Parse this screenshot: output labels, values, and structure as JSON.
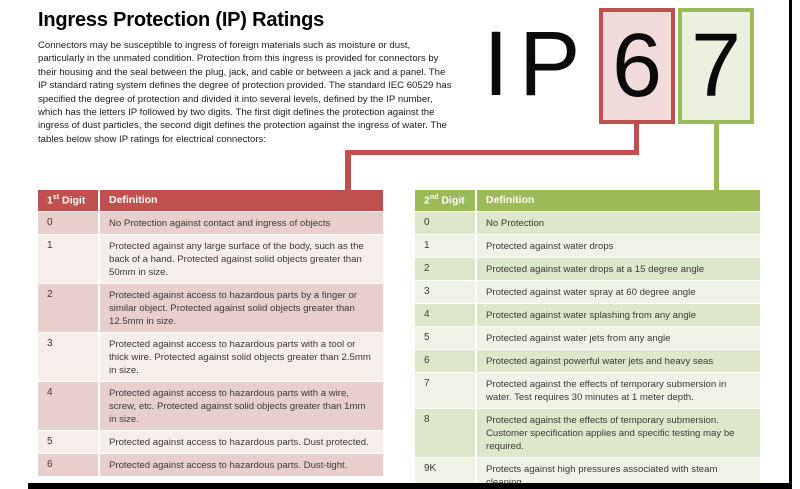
{
  "page": {
    "title": "Ingress Protection (IP) Ratings",
    "intro": "Connectors may be susceptible to ingress of foreign materials such as moisture or dust, particularly in the unmated condition.  Protection from this ingress is provided for connectors by their housing and the seal between the plug, jack, and cable or between a jack and a panel. The IP standard rating system defines the degree of protection provided. The standard IEC 60529 has specified the degree of protection and divided it into several levels, defined by the IP number, which has the letters IP followed by two digits.  The first digit defines the protection against the ingress of dust particles, the second digit defines the protection against the ingress of water. The tables below show IP ratings for electrical connectors:"
  },
  "ip_graphic": {
    "letter_i": "I",
    "letter_p": "P",
    "first_digit": "6",
    "second_digit": "7"
  },
  "colors": {
    "red_accent": "#c0504d",
    "red_box_fill": "#f2dcdb",
    "red_band_dark": "#e8cfcb",
    "red_band_light": "#f5eeea",
    "green_accent": "#9bbb59",
    "green_box_fill": "#ebf1de",
    "green_band_dark": "#dde7ca",
    "green_band_light": "#eff3e6"
  },
  "first_digit_table": {
    "header": {
      "num": "1",
      "sup": "st",
      "word": " Digit",
      "definition": "Definition"
    },
    "rows": [
      {
        "digit": "0",
        "definition": "No Protection against contact and ingress of objects"
      },
      {
        "digit": "1",
        "definition": "Protected against any large surface of the body, such as the back of a hand.  Protected against solid objects greater than 50mm in size."
      },
      {
        "digit": "2",
        "definition": "Protected against access to hazardous parts by a finger or similar object.  Protected against solid objects greater than 12.5mm in size."
      },
      {
        "digit": "3",
        "definition": "Protected against access to hazardous parts with a tool or thick wire.  Protected against solid objects greater than 2.5mm in size."
      },
      {
        "digit": "4",
        "definition": "Protected against access to hazardous parts with a wire, screw, etc.  Protected against solid objects greater than 1mm in size."
      },
      {
        "digit": "5",
        "definition": "Protected against access to hazardous parts.  Dust protected."
      },
      {
        "digit": "6",
        "definition": "Protected against access to hazardous parts.  Dust-tight."
      }
    ]
  },
  "second_digit_table": {
    "header": {
      "num": "2",
      "sup": "nd",
      "word": " Digit",
      "definition": "Definition"
    },
    "rows": [
      {
        "digit": "0",
        "definition": "No Protection"
      },
      {
        "digit": "1",
        "definition": "Protected against water drops"
      },
      {
        "digit": "2",
        "definition": "Protected against water drops at a 15 degree angle"
      },
      {
        "digit": "3",
        "definition": "Protected against water spray at 60 degree angle"
      },
      {
        "digit": "4",
        "definition": "Protected against water splashing from any angle"
      },
      {
        "digit": "5",
        "definition": "Protected against water jets from any angle"
      },
      {
        "digit": "6",
        "definition": "Protected against powerful water jets and heavy seas"
      },
      {
        "digit": "7",
        "definition": "Protected against the effects of temporary submersion in water.  Test requires 30 minutes at 1 meter depth."
      },
      {
        "digit": "8",
        "definition": "Protected against the effects of temporary submersion. Customer specification applies and specific testing may be required."
      },
      {
        "digit": "9K",
        "definition": "Protects against high pressures associated with steam cleaning."
      }
    ]
  }
}
